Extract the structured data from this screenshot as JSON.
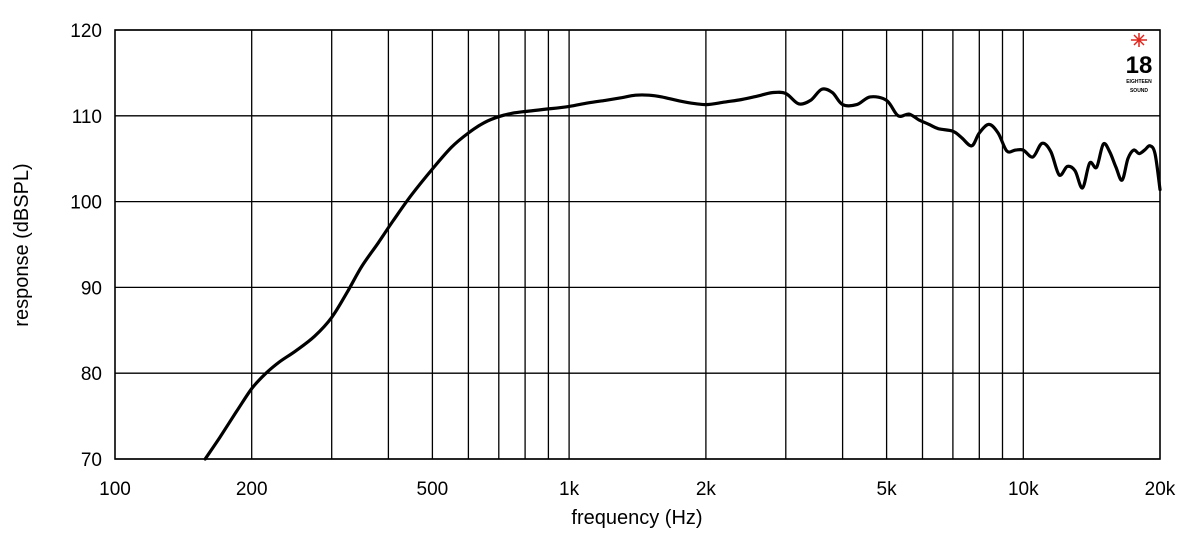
{
  "chart_data": {
    "type": "line",
    "xlabel": "frequency (Hz)",
    "ylabel": "response (dBSPL)",
    "x_scale": "log",
    "xlim": [
      100,
      20000
    ],
    "ylim": [
      70,
      120
    ],
    "grid": true,
    "x_ticks": [
      {
        "value": 100,
        "label": "100"
      },
      {
        "value": 200,
        "label": "200"
      },
      {
        "value": 500,
        "label": "500"
      },
      {
        "value": 1000,
        "label": "1k"
      },
      {
        "value": 2000,
        "label": "2k"
      },
      {
        "value": 5000,
        "label": "5k"
      },
      {
        "value": 10000,
        "label": "10k"
      },
      {
        "value": 20000,
        "label": "20k"
      }
    ],
    "x_gridlines": [
      200,
      300,
      400,
      500,
      600,
      700,
      800,
      900,
      1000,
      2000,
      3000,
      4000,
      5000,
      6000,
      7000,
      8000,
      9000,
      10000
    ],
    "y_ticks": [
      {
        "value": 70,
        "label": "70"
      },
      {
        "value": 80,
        "label": "80"
      },
      {
        "value": 90,
        "label": "90"
      },
      {
        "value": 100,
        "label": "100"
      },
      {
        "value": 110,
        "label": "110"
      },
      {
        "value": 120,
        "label": "120"
      }
    ],
    "series": [
      {
        "x": [
          158,
          170,
          185,
          200,
          215,
          230,
          250,
          275,
          300,
          325,
          350,
          380,
          410,
          450,
          500,
          550,
          600,
          650,
          700,
          750,
          800,
          900,
          1000,
          1100,
          1200,
          1300,
          1400,
          1500,
          1600,
          1800,
          2000,
          2200,
          2400,
          2600,
          2800,
          3000,
          3200,
          3400,
          3600,
          3800,
          4000,
          4300,
          4600,
          5000,
          5300,
          5600,
          5900,
          6200,
          6500,
          7000,
          7300,
          7700,
          8000,
          8400,
          8800,
          9200,
          9600,
          10000,
          10500,
          11000,
          11500,
          12000,
          12500,
          13000,
          13500,
          14000,
          14500,
          15000,
          15500,
          16000,
          16500,
          17000,
          17500,
          18000,
          18500,
          19000,
          19500,
          20000
        ],
        "y": [
          70,
          72.5,
          75.5,
          78.2,
          80,
          81.3,
          82.6,
          84.3,
          86.5,
          89.5,
          92.5,
          95.2,
          97.8,
          100.8,
          103.8,
          106.3,
          108,
          109.2,
          109.9,
          110.3,
          110.5,
          110.8,
          111.1,
          111.5,
          111.8,
          112.1,
          112.4,
          112.4,
          112.2,
          111.6,
          111.3,
          111.6,
          111.9,
          112.3,
          112.7,
          112.6,
          111.4,
          111.8,
          113.1,
          112.7,
          111.3,
          111.3,
          112.2,
          111.8,
          110,
          110.2,
          109.5,
          109,
          108.5,
          108.2,
          107.5,
          106.5,
          108,
          109,
          108,
          105.9,
          106,
          106,
          105.2,
          106.8,
          105.8,
          103.1,
          104.1,
          103.6,
          101.6,
          104.5,
          104,
          106.7,
          105.8,
          104,
          102.5,
          105,
          106,
          105.6,
          106,
          106.5,
          105.6,
          101.4
        ]
      }
    ]
  },
  "logo": {
    "text": "18",
    "subtext_top": "EIGHTEEN",
    "subtext_bottom": "SOUND",
    "accent": "#e0241b"
  }
}
